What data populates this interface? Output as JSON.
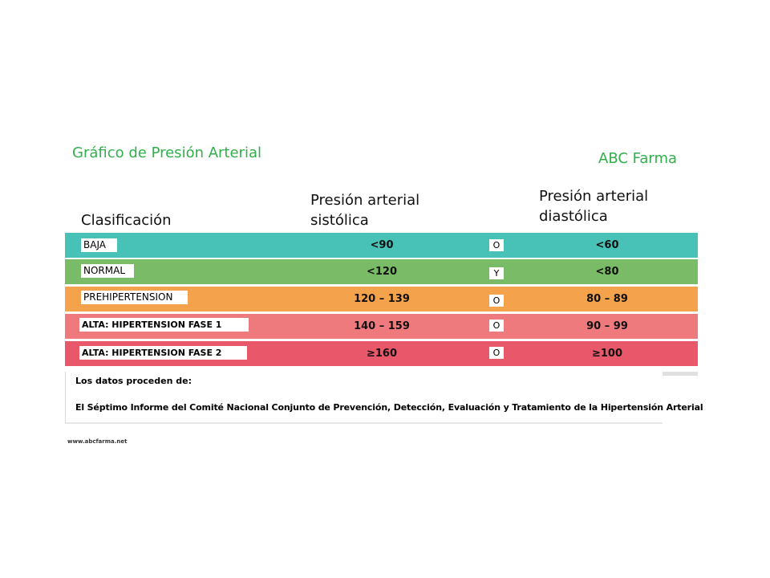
{
  "title": "Gráfico de Presión Arterial",
  "brand": "ABC Farma",
  "headers": {
    "classification": "Clasificación",
    "systolic": "Presión arterial sistólica",
    "diastolic": "Presión arterial diastólica"
  },
  "rows": [
    {
      "label": "BAJA",
      "systolic": "<90",
      "connector": "O",
      "diastolic": "<60",
      "color": "#48c2b6"
    },
    {
      "label": "NORMAL",
      "systolic": "<120",
      "connector": "Y",
      "diastolic": "<80",
      "color": "#79bb66"
    },
    {
      "label": "PREHIPERTENSION",
      "systolic": "120 – 139",
      "connector": "O",
      "diastolic": "80 – 89",
      "color": "#f4a24c"
    },
    {
      "label": "ALTA: HIPERTENSION FASE 1",
      "systolic": "140 – 159",
      "connector": "O",
      "diastolic": "90 – 99",
      "color": "#ef7a7e"
    },
    {
      "label": "ALTA: HIPERTENSION FASE 2",
      "systolic": "≥160",
      "connector": "O",
      "diastolic": "≥100",
      "color": "#e9576a"
    }
  ],
  "source": {
    "line1": "Los datos proceden de:",
    "line2": "El Séptimo Informe del Comité Nacional Conjunto de Prevención, Detección, Evaluación y Tratamiento de la Hipertensión Arterial"
  },
  "url": "www.abcfarma.net"
}
